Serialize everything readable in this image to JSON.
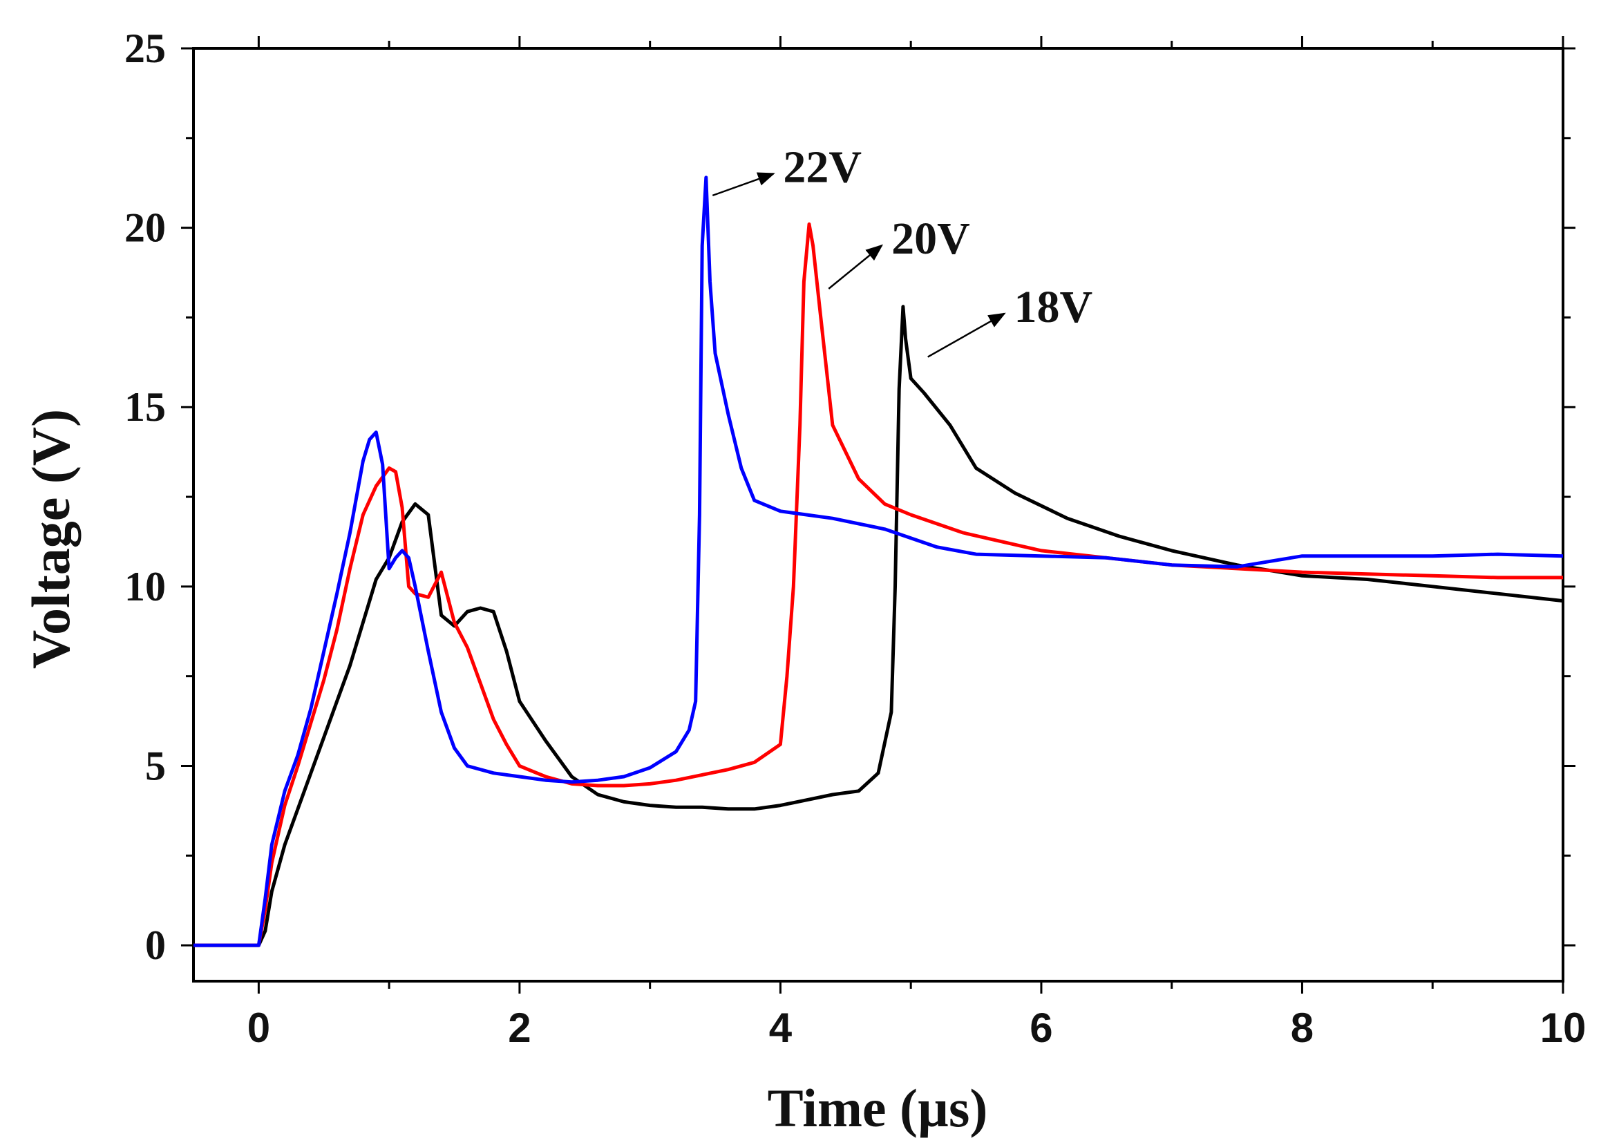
{
  "chart_data": {
    "type": "line",
    "title": "",
    "xlabel": "Time (µs)",
    "ylabel": "Voltage (V)",
    "xlim": [
      -0.5,
      10
    ],
    "ylim": [
      -1,
      25
    ],
    "xticks": [
      0,
      2,
      4,
      6,
      8,
      10
    ],
    "xtick_labels": [
      "0",
      "2",
      "4",
      "6",
      "8",
      "10"
    ],
    "yticks": [
      0,
      5,
      10,
      15,
      20,
      25
    ],
    "ytick_labels": [
      "0",
      "5",
      "10",
      "15",
      "20",
      "25"
    ],
    "grid": false,
    "legend": "none",
    "series": [
      {
        "name": "18V",
        "color": "#000000",
        "x": [
          -0.5,
          0.0,
          0.05,
          0.1,
          0.2,
          0.3,
          0.4,
          0.5,
          0.6,
          0.7,
          0.8,
          0.9,
          1.0,
          1.1,
          1.2,
          1.3,
          1.4,
          1.5,
          1.6,
          1.7,
          1.8,
          1.9,
          2.0,
          2.2,
          2.4,
          2.6,
          2.8,
          3.0,
          3.2,
          3.4,
          3.6,
          3.8,
          4.0,
          4.2,
          4.4,
          4.6,
          4.75,
          4.85,
          4.88,
          4.91,
          4.94,
          4.96,
          5.0,
          5.1,
          5.3,
          5.5,
          5.8,
          6.2,
          6.6,
          7.0,
          7.5,
          8.0,
          8.5,
          9.0,
          9.5,
          10.0
        ],
        "y": [
          0,
          0,
          0.4,
          1.5,
          2.8,
          3.8,
          4.8,
          5.8,
          6.8,
          7.8,
          9.0,
          10.2,
          10.8,
          11.8,
          12.3,
          12.0,
          9.2,
          8.9,
          9.3,
          9.4,
          9.3,
          8.2,
          6.8,
          5.7,
          4.7,
          4.2,
          4.0,
          3.9,
          3.85,
          3.85,
          3.8,
          3.8,
          3.9,
          4.05,
          4.2,
          4.3,
          4.8,
          6.5,
          10.0,
          15.5,
          17.8,
          16.9,
          15.8,
          15.4,
          14.5,
          13.3,
          12.6,
          11.9,
          11.4,
          11.0,
          10.6,
          10.3,
          10.2,
          10.0,
          9.8,
          9.6
        ]
      },
      {
        "name": "20V",
        "color": "#ff0000",
        "x": [
          -0.5,
          0.0,
          0.05,
          0.1,
          0.2,
          0.3,
          0.4,
          0.5,
          0.6,
          0.7,
          0.8,
          0.9,
          1.0,
          1.05,
          1.1,
          1.15,
          1.2,
          1.3,
          1.4,
          1.5,
          1.6,
          1.7,
          1.8,
          1.9,
          2.0,
          2.2,
          2.4,
          2.6,
          2.8,
          3.0,
          3.2,
          3.4,
          3.6,
          3.8,
          4.0,
          4.05,
          4.1,
          4.15,
          4.18,
          4.22,
          4.25,
          4.3,
          4.4,
          4.6,
          4.8,
          5.0,
          5.4,
          6.0,
          6.5,
          7.0,
          7.5,
          8.0,
          8.5,
          9.0,
          9.5,
          10.0
        ],
        "y": [
          0,
          0,
          1.0,
          2.3,
          3.9,
          5.0,
          6.2,
          7.4,
          8.8,
          10.5,
          12.0,
          12.8,
          13.3,
          13.2,
          12.2,
          10.0,
          9.8,
          9.7,
          10.4,
          9.0,
          8.3,
          7.3,
          6.3,
          5.6,
          5.0,
          4.7,
          4.5,
          4.45,
          4.45,
          4.5,
          4.6,
          4.75,
          4.9,
          5.1,
          5.6,
          7.5,
          10.0,
          14.5,
          18.5,
          20.1,
          19.5,
          17.8,
          14.5,
          13.0,
          12.3,
          12.0,
          11.5,
          11.0,
          10.8,
          10.6,
          10.5,
          10.4,
          10.35,
          10.3,
          10.25,
          10.25
        ]
      },
      {
        "name": "22V",
        "color": "#0000ff",
        "x": [
          -0.5,
          0.0,
          0.05,
          0.1,
          0.2,
          0.3,
          0.4,
          0.5,
          0.6,
          0.7,
          0.8,
          0.85,
          0.9,
          0.95,
          1.0,
          1.05,
          1.1,
          1.15,
          1.2,
          1.3,
          1.4,
          1.5,
          1.6,
          1.8,
          2.0,
          2.2,
          2.4,
          2.6,
          2.8,
          3.0,
          3.2,
          3.3,
          3.35,
          3.38,
          3.4,
          3.43,
          3.46,
          3.5,
          3.6,
          3.7,
          3.8,
          4.0,
          4.4,
          4.8,
          5.2,
          5.5,
          6.0,
          6.5,
          7.0,
          7.5,
          8.0,
          8.5,
          9.0,
          9.5,
          10.0
        ],
        "y": [
          0,
          0,
          1.3,
          2.8,
          4.3,
          5.3,
          6.6,
          8.2,
          9.8,
          11.5,
          13.5,
          14.1,
          14.3,
          13.4,
          10.5,
          10.8,
          11.0,
          10.8,
          10.0,
          8.2,
          6.5,
          5.5,
          5.0,
          4.8,
          4.7,
          4.6,
          4.55,
          4.6,
          4.7,
          4.95,
          5.4,
          6.0,
          6.8,
          12.0,
          19.5,
          21.4,
          18.5,
          16.5,
          14.8,
          13.3,
          12.4,
          12.1,
          11.9,
          11.6,
          11.1,
          10.9,
          10.85,
          10.8,
          10.6,
          10.55,
          10.85,
          10.85,
          10.85,
          10.9,
          10.85
        ]
      }
    ],
    "annotations": [
      {
        "text": "22V",
        "x": 3.48,
        "y": 20.9,
        "text_x": 4.0,
        "text_y": 21.7
      },
      {
        "text": "20V",
        "x": 4.37,
        "y": 18.3,
        "text_x": 4.83,
        "text_y": 19.7
      },
      {
        "text": "18V",
        "x": 5.13,
        "y": 16.4,
        "text_x": 5.77,
        "text_y": 17.8
      }
    ]
  }
}
